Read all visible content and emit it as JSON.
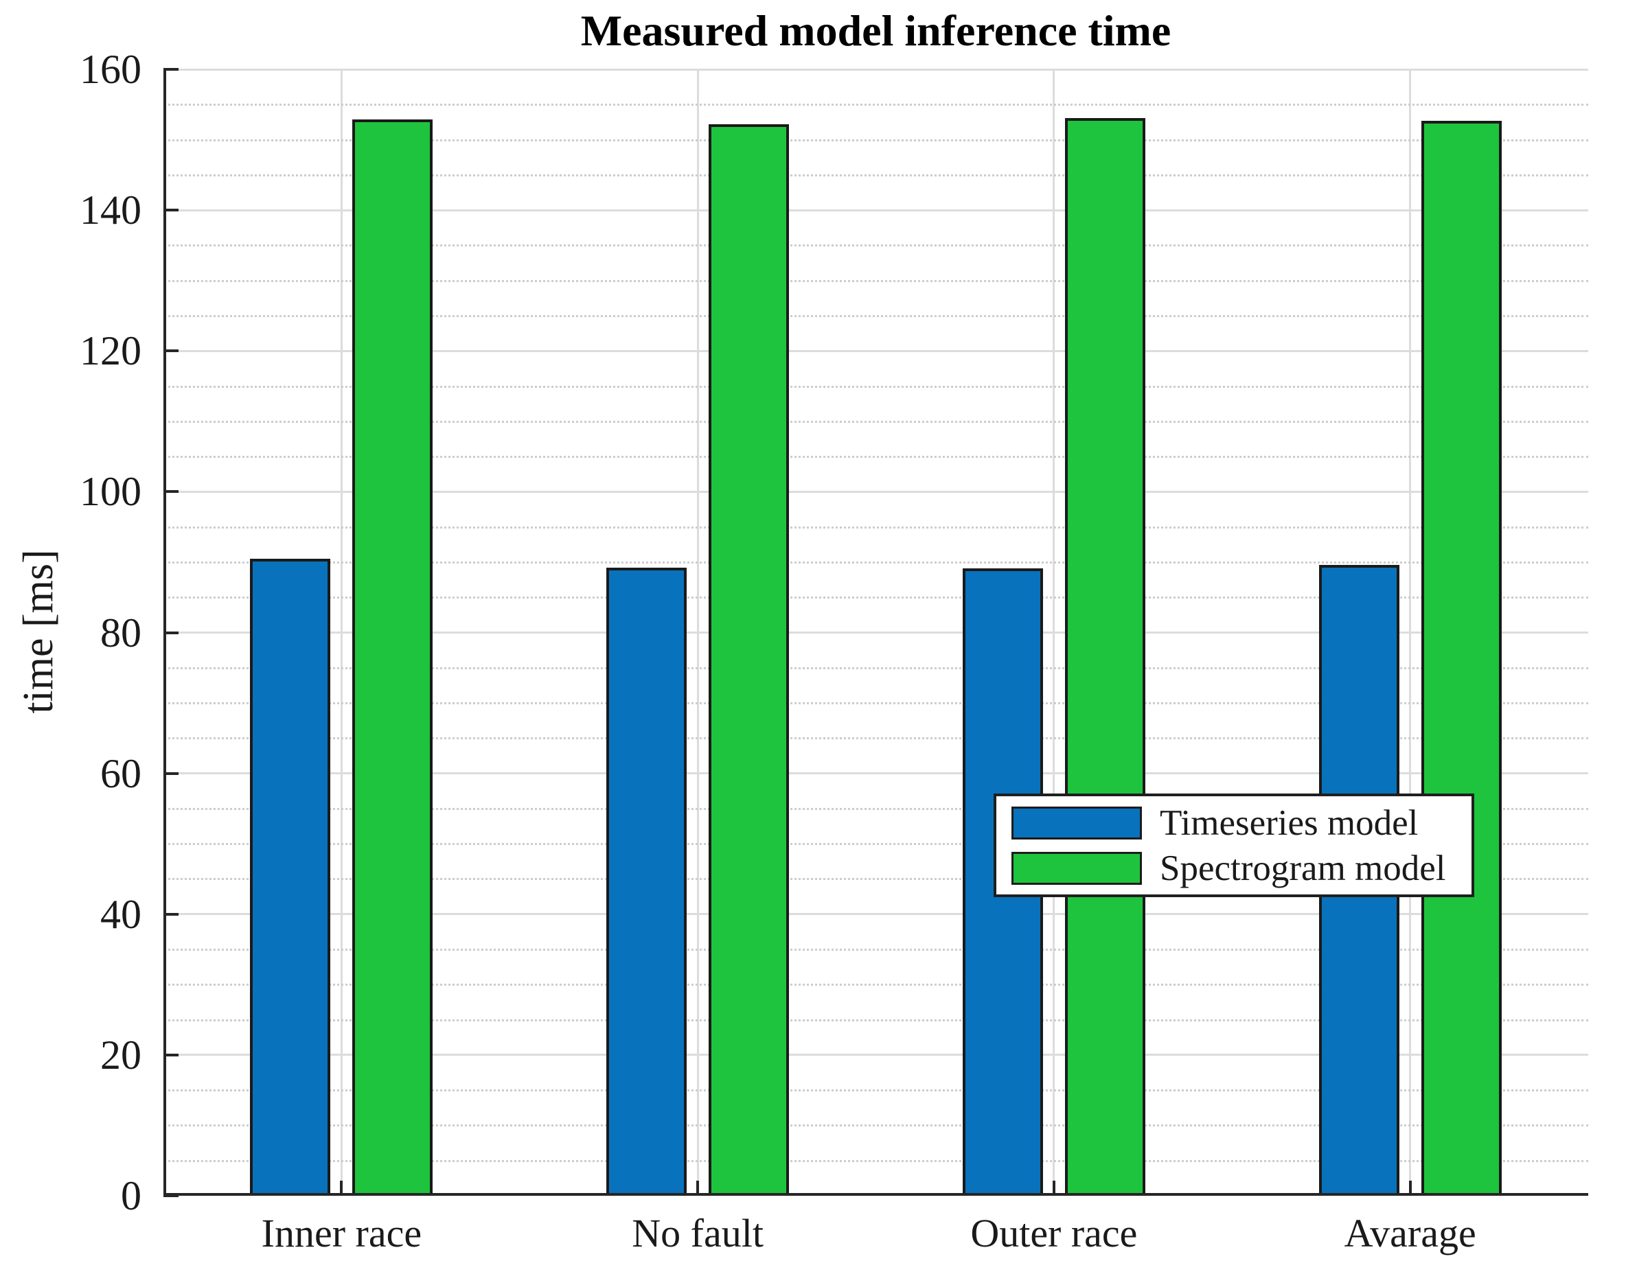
{
  "chart_data": {
    "type": "bar",
    "title": "Measured model inference time",
    "ylabel": "time [ms]",
    "categories": [
      "Inner race",
      "No fault",
      "Outer race",
      "Avarage"
    ],
    "series": [
      {
        "name": "Timeseries model",
        "color": "#0872BC",
        "edge_color": "#1a1a1a",
        "values": [
          90.5,
          89.2,
          89.1,
          89.6
        ]
      },
      {
        "name": "Spectrogram model",
        "color": "#1EC43D",
        "edge_color": "#1a1a1a",
        "values": [
          152.9,
          152.2,
          153.1,
          152.7
        ]
      }
    ],
    "ylim": [
      0,
      160
    ],
    "yticks": [
      0,
      20,
      40,
      60,
      80,
      100,
      120,
      140,
      160
    ],
    "y_minor_step": 5,
    "grid": {
      "y_major_solid": true,
      "y_minor_dotted": true,
      "x_major_solid": true
    },
    "legend_position": "middle-right",
    "colors": {
      "axis": "#262626",
      "major_grid": "#dcdcdc",
      "minor_grid": "#cdcdcd",
      "background": "#ffffff",
      "text": "#1a1a1a"
    }
  }
}
